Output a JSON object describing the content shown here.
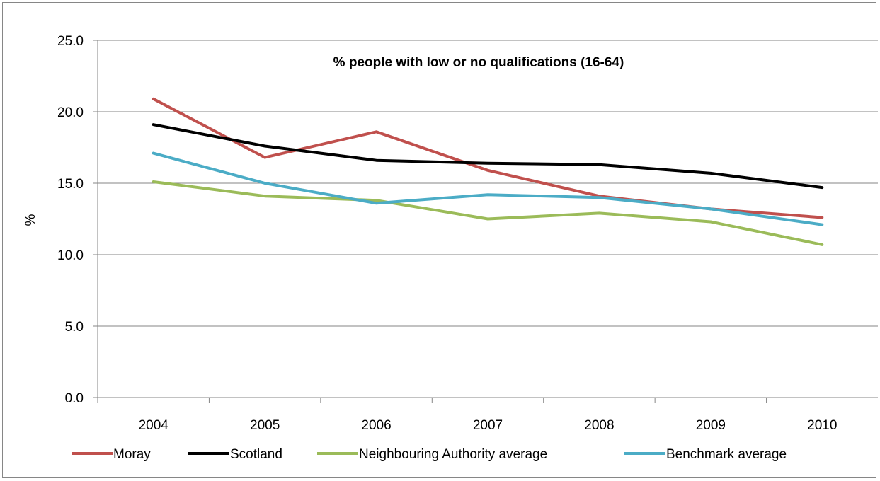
{
  "chart_data": {
    "type": "line",
    "title": "% people with low or no qualifications (16-64)",
    "xlabel": "",
    "ylabel": "%",
    "categories": [
      "2004",
      "2005",
      "2006",
      "2007",
      "2008",
      "2009",
      "2010"
    ],
    "ylim": [
      0,
      25
    ],
    "yticks": [
      "0.0",
      "5.0",
      "10.0",
      "15.0",
      "20.0",
      "25.0"
    ],
    "grid": true,
    "legend_position": "bottom",
    "series": [
      {
        "name": "Moray",
        "color": "#C0504D",
        "values": [
          20.9,
          16.8,
          18.6,
          15.9,
          14.1,
          13.2,
          12.6
        ]
      },
      {
        "name": "Scotland",
        "color": "#000000",
        "values": [
          19.1,
          17.6,
          16.6,
          16.4,
          16.3,
          15.7,
          14.7
        ]
      },
      {
        "name": "Neighbouring Authority average",
        "color": "#9BBB59",
        "values": [
          15.1,
          14.1,
          13.8,
          12.5,
          12.9,
          12.3,
          10.7
        ]
      },
      {
        "name": "Benchmark average",
        "color": "#4BACC6",
        "values": [
          17.1,
          15.0,
          13.6,
          14.2,
          14.0,
          13.2,
          12.1
        ]
      }
    ]
  }
}
